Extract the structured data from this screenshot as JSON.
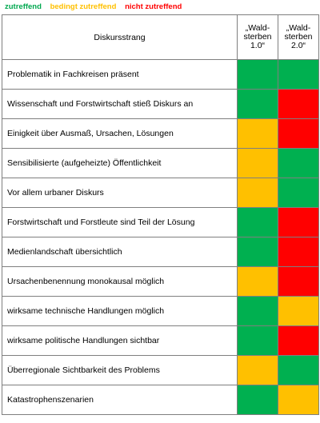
{
  "legend": [
    {
      "label": "zutreffend",
      "color": "#00a84f"
    },
    {
      "label": "bedingt zutreffend",
      "color": "#ffc000"
    },
    {
      "label": "nicht zutreffend",
      "color": "#ff0000"
    }
  ],
  "colors": {
    "zutreffend": "#00b050",
    "bedingt": "#ffc000",
    "nicht": "#ff0000"
  },
  "header": {
    "label": "Diskursstrang",
    "col1": "„Wald-sterben 1.0“",
    "col2": "„Wald-sterben 2.0“"
  },
  "rows": [
    {
      "label": "Problematik in Fachkreisen präsent",
      "v1": "zutreffend",
      "v2": "zutreffend"
    },
    {
      "label": "Wissenschaft und Forstwirtschaft stieß Diskurs an",
      "v1": "zutreffend",
      "v2": "nicht"
    },
    {
      "label": "Einigkeit über Ausmaß, Ursachen, Lösungen",
      "v1": "bedingt",
      "v2": "nicht"
    },
    {
      "label": "Sensibilisierte (aufgeheizte) Öffentlichkeit",
      "v1": "bedingt",
      "v2": "zutreffend"
    },
    {
      "label": "Vor allem urbaner Diskurs",
      "v1": "bedingt",
      "v2": "zutreffend"
    },
    {
      "label": "Forstwirtschaft und Forstleute sind Teil der Lösung",
      "v1": "zutreffend",
      "v2": "nicht"
    },
    {
      "label": "Medienlandschaft übersichtlich",
      "v1": "zutreffend",
      "v2": "nicht"
    },
    {
      "label": "Ursachenbenennung monokausal möglich",
      "v1": "bedingt",
      "v2": "nicht"
    },
    {
      "label": "wirksame technische Handlungen möglich",
      "v1": "zutreffend",
      "v2": "bedingt"
    },
    {
      "label": "wirksame politische Handlungen sichtbar",
      "v1": "zutreffend",
      "v2": "nicht"
    },
    {
      "label": "Überregionale Sichtbarkeit des Problems",
      "v1": "bedingt",
      "v2": "zutreffend"
    },
    {
      "label": "Katastrophenszenarien",
      "v1": "zutreffend",
      "v2": "bedingt"
    }
  ]
}
